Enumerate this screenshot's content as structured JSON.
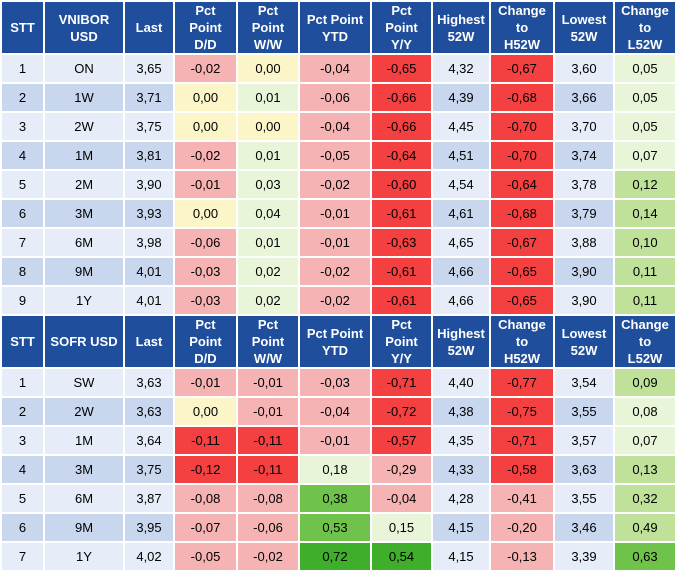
{
  "colors": {
    "header_bg": "#1f4e9c",
    "header_text": "#ffffff",
    "row_blue_dark": "#c8d6ee",
    "row_blue_light": "#e6edf8",
    "red_strong": "#f44040",
    "red_light": "#f6b3b3",
    "yellow_neutral": "#fbf5c8",
    "green_light": "#e9f5d8",
    "green_mid": "#bfe19a",
    "green_strong": "#6fc24a",
    "green_vivid": "#3fae2a"
  },
  "sections": [
    {
      "headers": {
        "stt": "STT",
        "term": [
          "VNIBOR",
          "USD"
        ],
        "last": "Last",
        "dd": [
          "Pct",
          "Point",
          "D/D"
        ],
        "ww": [
          "Pct",
          "Point",
          "W/W"
        ],
        "ytd": [
          "Pct Point",
          "YTD"
        ],
        "yy": [
          "Pct",
          "Point",
          "Y/Y"
        ],
        "high": [
          "Highest",
          "52W"
        ],
        "chh": [
          "Change",
          "to",
          "H52W"
        ],
        "low": [
          "Lowest",
          "52W"
        ],
        "chl": [
          "Change",
          "to",
          "L52W"
        ]
      },
      "rows": [
        {
          "stt": "1",
          "term": "ON",
          "last": "3,65",
          "dd": "-0,02",
          "ww": "0,00",
          "ytd": "-0,04",
          "yy": "-0,65",
          "high": "4,32",
          "chh": "-0,67",
          "low": "3,60",
          "chl": "0,05"
        },
        {
          "stt": "2",
          "term": "1W",
          "last": "3,71",
          "dd": "0,00",
          "ww": "0,01",
          "ytd": "-0,06",
          "yy": "-0,66",
          "high": "4,39",
          "chh": "-0,68",
          "low": "3,66",
          "chl": "0,05"
        },
        {
          "stt": "3",
          "term": "2W",
          "last": "3,75",
          "dd": "0,00",
          "ww": "0,00",
          "ytd": "-0,04",
          "yy": "-0,66",
          "high": "4,45",
          "chh": "-0,70",
          "low": "3,70",
          "chl": "0,05"
        },
        {
          "stt": "4",
          "term": "1M",
          "last": "3,81",
          "dd": "-0,02",
          "ww": "0,01",
          "ytd": "-0,05",
          "yy": "-0,64",
          "high": "4,51",
          "chh": "-0,70",
          "low": "3,74",
          "chl": "0,07"
        },
        {
          "stt": "5",
          "term": "2M",
          "last": "3,90",
          "dd": "-0,01",
          "ww": "0,03",
          "ytd": "-0,02",
          "yy": "-0,60",
          "high": "4,54",
          "chh": "-0,64",
          "low": "3,78",
          "chl": "0,12"
        },
        {
          "stt": "6",
          "term": "3M",
          "last": "3,93",
          "dd": "0,00",
          "ww": "0,04",
          "ytd": "-0,01",
          "yy": "-0,61",
          "high": "4,61",
          "chh": "-0,68",
          "low": "3,79",
          "chl": "0,14"
        },
        {
          "stt": "7",
          "term": "6M",
          "last": "3,98",
          "dd": "-0,06",
          "ww": "0,01",
          "ytd": "-0,01",
          "yy": "-0,63",
          "high": "4,65",
          "chh": "-0,67",
          "low": "3,88",
          "chl": "0,10"
        },
        {
          "stt": "8",
          "term": "9M",
          "last": "4,01",
          "dd": "-0,03",
          "ww": "0,02",
          "ytd": "-0,02",
          "yy": "-0,61",
          "high": "4,66",
          "chh": "-0,65",
          "low": "3,90",
          "chl": "0,11"
        },
        {
          "stt": "9",
          "term": "1Y",
          "last": "4,01",
          "dd": "-0,03",
          "ww": "0,02",
          "ytd": "-0,02",
          "yy": "-0,61",
          "high": "4,66",
          "chh": "-0,65",
          "low": "3,90",
          "chl": "0,11"
        }
      ]
    },
    {
      "headers": {
        "stt": "STT",
        "term": [
          "SOFR USD"
        ],
        "last": "Last",
        "dd": [
          "Pct",
          "Point",
          "D/D"
        ],
        "ww": [
          "Pct",
          "Point",
          "W/W"
        ],
        "ytd": [
          "Pct Point",
          "YTD"
        ],
        "yy": [
          "Pct",
          "Point",
          "Y/Y"
        ],
        "high": [
          "Highest",
          "52W"
        ],
        "chh": [
          "Change",
          "to",
          "H52W"
        ],
        "low": [
          "Lowest",
          "52W"
        ],
        "chl": [
          "Change",
          "to",
          "L52W"
        ]
      },
      "rows": [
        {
          "stt": "1",
          "term": "SW",
          "last": "3,63",
          "dd": "-0,01",
          "ww": "-0,01",
          "ytd": "-0,03",
          "yy": "-0,71",
          "high": "4,40",
          "chh": "-0,77",
          "low": "3,54",
          "chl": "0,09"
        },
        {
          "stt": "2",
          "term": "2W",
          "last": "3,63",
          "dd": "0,00",
          "ww": "-0,01",
          "ytd": "-0,04",
          "yy": "-0,72",
          "high": "4,38",
          "chh": "-0,75",
          "low": "3,55",
          "chl": "0,08"
        },
        {
          "stt": "3",
          "term": "1M",
          "last": "3,64",
          "dd": "-0,11",
          "ww": "-0,11",
          "ytd": "-0,01",
          "yy": "-0,57",
          "high": "4,35",
          "chh": "-0,71",
          "low": "3,57",
          "chl": "0,07"
        },
        {
          "stt": "4",
          "term": "3M",
          "last": "3,75",
          "dd": "-0,12",
          "ww": "-0,11",
          "ytd": "0,18",
          "yy": "-0,29",
          "high": "4,33",
          "chh": "-0,58",
          "low": "3,63",
          "chl": "0,13"
        },
        {
          "stt": "5",
          "term": "6M",
          "last": "3,87",
          "dd": "-0,08",
          "ww": "-0,08",
          "ytd": "0,38",
          "yy": "-0,04",
          "high": "4,28",
          "chh": "-0,41",
          "low": "3,55",
          "chl": "0,32"
        },
        {
          "stt": "6",
          "term": "9M",
          "last": "3,95",
          "dd": "-0,07",
          "ww": "-0,06",
          "ytd": "0,53",
          "yy": "0,15",
          "high": "4,15",
          "chh": "-0,20",
          "low": "3,46",
          "chl": "0,49"
        },
        {
          "stt": "7",
          "term": "1Y",
          "last": "4,02",
          "dd": "-0,05",
          "ww": "-0,02",
          "ytd": "0,72",
          "yy": "0,54",
          "high": "4,15",
          "chh": "-0,13",
          "low": "3,39",
          "chl": "0,63"
        }
      ]
    }
  ]
}
